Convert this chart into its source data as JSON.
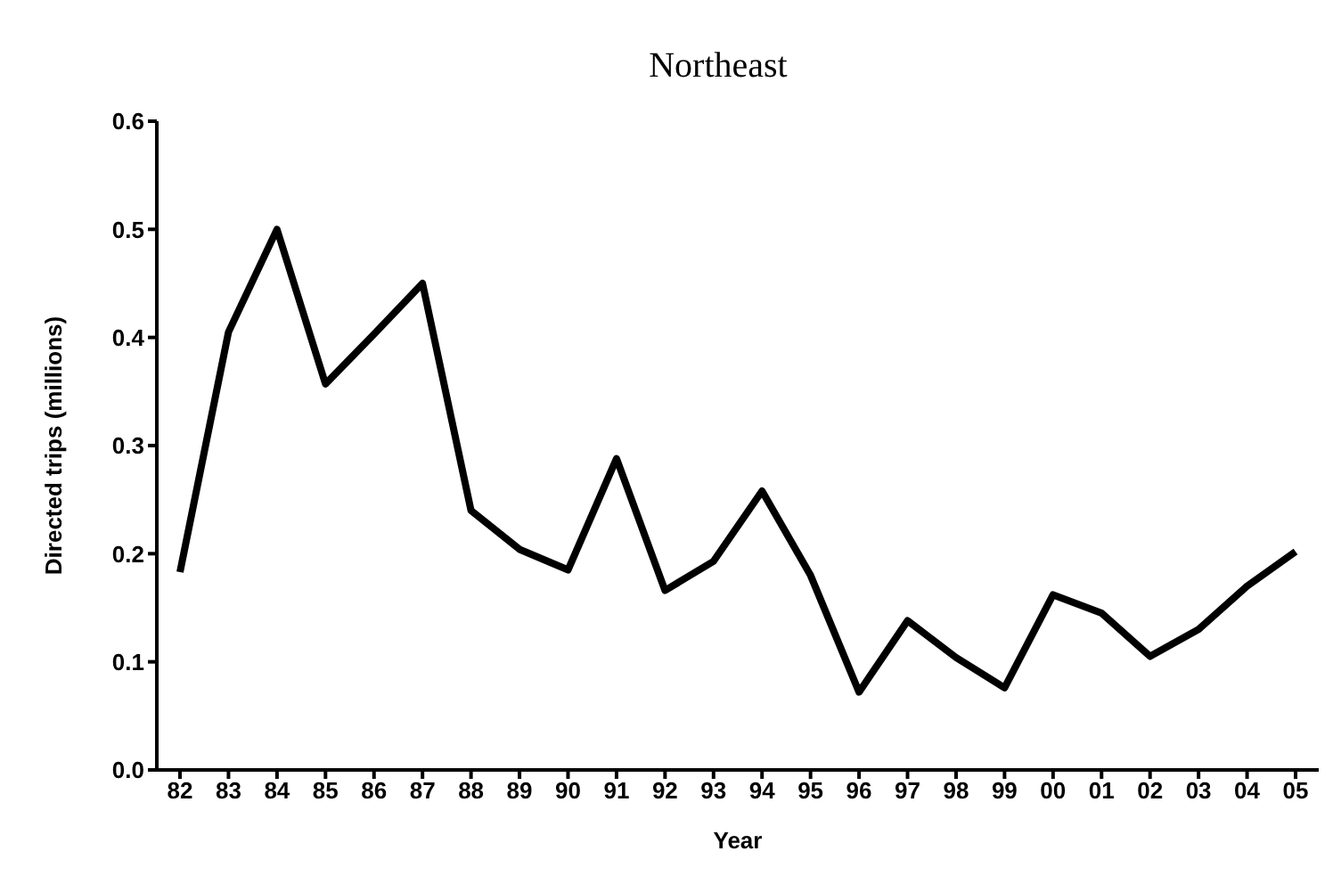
{
  "chart_data": {
    "type": "line",
    "title": "Northeast",
    "xlabel": "Year",
    "ylabel": "Directed trips (millions)",
    "categories": [
      "82",
      "83",
      "84",
      "85",
      "86",
      "87",
      "88",
      "89",
      "90",
      "91",
      "92",
      "93",
      "94",
      "95",
      "96",
      "97",
      "98",
      "99",
      "00",
      "01",
      "02",
      "03",
      "04",
      "05"
    ],
    "series": [
      {
        "color": "#000000",
        "values": [
          0.183,
          0.405,
          0.5,
          0.357,
          0.403,
          0.45,
          0.24,
          0.204,
          0.185,
          0.288,
          0.166,
          0.193,
          0.258,
          0.18,
          0.072,
          0.138,
          0.104,
          0.076,
          0.162,
          0.145,
          0.105,
          0.13,
          0.17,
          0.202
        ]
      }
    ],
    "ylim": [
      0,
      0.6
    ],
    "yticks": [
      {
        "value": 0,
        "label": "0.0"
      },
      {
        "value": 0.1,
        "label": "0.1"
      },
      {
        "value": 0.2,
        "label": "0.2"
      },
      {
        "value": 0.3,
        "label": "0.3"
      },
      {
        "value": 0.4,
        "label": "0.4"
      },
      {
        "value": 0.5,
        "label": "0.5"
      },
      {
        "value": 0.6,
        "label": "0.6"
      }
    ],
    "marker": "none",
    "line_style": "solid"
  }
}
